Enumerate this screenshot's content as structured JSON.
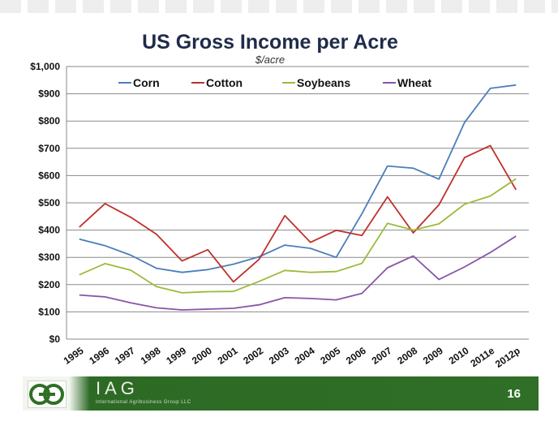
{
  "slide": {
    "page_number": "16",
    "logo_text": "IAG",
    "logo_subtitle": "International Agribusiness Group LLC"
  },
  "colors": {
    "corn": "#4a7ebb",
    "cotton": "#c0302a",
    "soybeans": "#9bbb3a",
    "wheat": "#8656a8",
    "footer": "#2f6f27"
  },
  "chart_data": {
    "type": "line",
    "title": "US Gross Income per Acre",
    "subtitle": "$/acre",
    "xlabel": "",
    "ylabel": "",
    "categories": [
      "1995",
      "1996",
      "1997",
      "1998",
      "1999",
      "2000",
      "2001",
      "2002",
      "2003",
      "2004",
      "2005",
      "2006",
      "2007",
      "2008",
      "2009",
      "2010",
      "2011e",
      "2012p"
    ],
    "ylim": [
      0,
      1000
    ],
    "yticks": [
      0,
      100,
      200,
      300,
      400,
      500,
      600,
      700,
      800,
      900,
      1000
    ],
    "ytick_labels": [
      "$0",
      "$100",
      "$200",
      "$300",
      "$400",
      "$500",
      "$600",
      "$700",
      "$800",
      "$900",
      "$1,000"
    ],
    "grid": true,
    "legend_position": "top",
    "series": [
      {
        "name": "Corn",
        "color": "#4a7ebb",
        "values": [
          367,
          343,
          308,
          260,
          245,
          255,
          275,
          302,
          345,
          333,
          300,
          460,
          635,
          627,
          587,
          795,
          920,
          932
        ]
      },
      {
        "name": "Cotton",
        "color": "#c0302a",
        "values": [
          411,
          497,
          447,
          385,
          287,
          328,
          210,
          293,
          453,
          355,
          399,
          380,
          522,
          390,
          493,
          666,
          710,
          548
        ]
      },
      {
        "name": "Soybeans",
        "color": "#9bbb3a",
        "values": [
          236,
          277,
          253,
          193,
          170,
          174,
          175,
          212,
          252,
          245,
          248,
          278,
          425,
          400,
          423,
          495,
          525,
          588
        ]
      },
      {
        "name": "Wheat",
        "color": "#8656a8",
        "values": [
          162,
          155,
          133,
          115,
          107,
          110,
          113,
          126,
          152,
          149,
          144,
          168,
          262,
          305,
          219,
          265,
          318,
          378
        ]
      }
    ]
  }
}
